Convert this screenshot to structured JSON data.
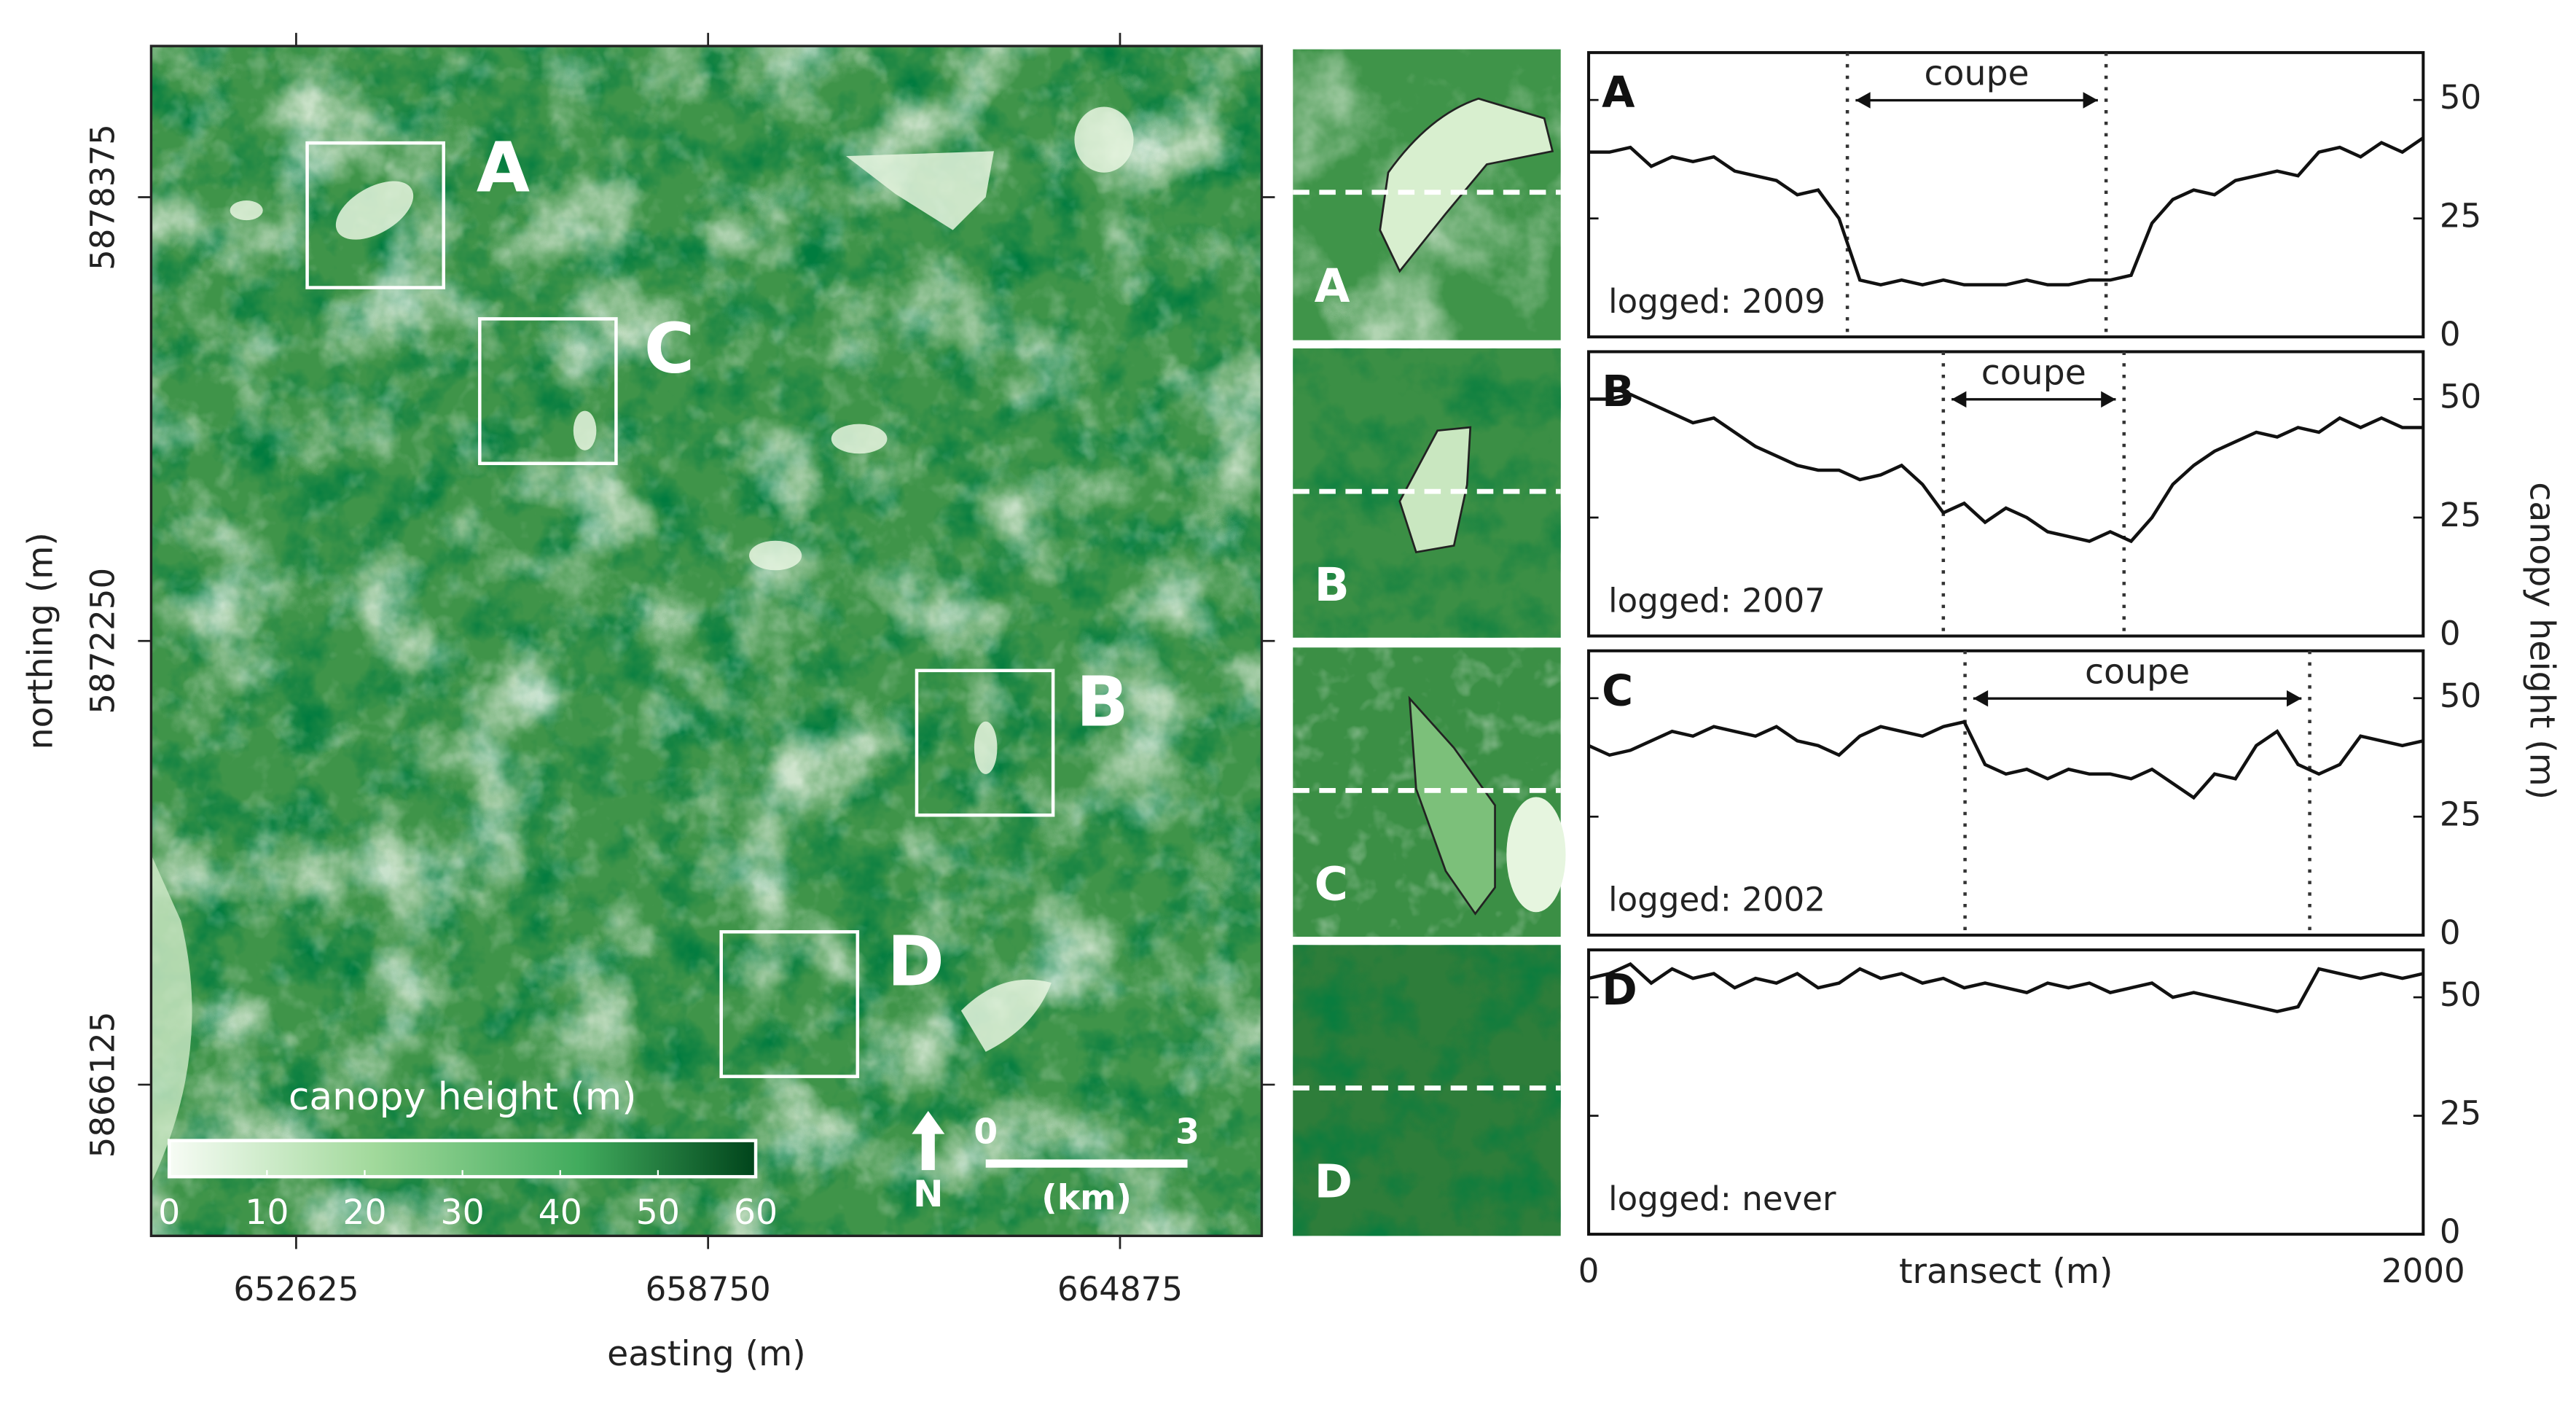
{
  "chart_data": [
    {
      "type": "map",
      "xlabel": "easting (m)",
      "ylabel": "northing (m)",
      "xlim": [
        650469,
        666982
      ],
      "ylim": [
        5864038,
        5880462
      ],
      "xticks": [
        652625,
        658750,
        664875
      ],
      "yticks": [
        5866125,
        5872250,
        5878375
      ],
      "boxes": [
        "A",
        "C",
        "B",
        "D"
      ],
      "insets": [
        "A",
        "B",
        "C",
        "D"
      ],
      "colorbar": {
        "label": "canopy height (m)",
        "lim": [
          0,
          60
        ],
        "ticks": [
          0,
          10,
          20,
          30,
          40,
          50,
          60
        ]
      },
      "scalebar": {
        "ticks": [
          0,
          3
        ],
        "label": "(km)"
      },
      "north": "N"
    },
    {
      "type": "line",
      "panel": "A",
      "note": "logged: 2009",
      "annotation": "coupe",
      "vlines": [
        620,
        1240
      ],
      "color": "#111111",
      "xlim": [
        0,
        2000
      ],
      "ylim": [
        0,
        60
      ],
      "yticks": [
        0,
        25,
        50
      ],
      "x": [
        0,
        50,
        100,
        150,
        200,
        250,
        300,
        350,
        400,
        450,
        500,
        550,
        600,
        650,
        700,
        750,
        800,
        850,
        900,
        950,
        1000,
        1050,
        1100,
        1150,
        1200,
        1250,
        1300,
        1350,
        1400,
        1450,
        1500,
        1550,
        1600,
        1650,
        1700,
        1750,
        1800,
        1850,
        1900,
        1950,
        2000
      ],
      "values": [
        39,
        39,
        40,
        36,
        38,
        37,
        38,
        35,
        34,
        33,
        30,
        31,
        25,
        12,
        11,
        12,
        11,
        12,
        11,
        11,
        11,
        12,
        11,
        11,
        12,
        12,
        13,
        24,
        29,
        31,
        30,
        33,
        34,
        35,
        34,
        39,
        40,
        38,
        41,
        39,
        42
      ]
    },
    {
      "type": "line",
      "panel": "B",
      "note": "logged: 2007",
      "annotation": "coupe",
      "vlines": [
        850,
        1283
      ],
      "color": "#111111",
      "xlim": [
        0,
        2000
      ],
      "ylim": [
        0,
        60
      ],
      "yticks": [
        0,
        25,
        50
      ],
      "x": [
        0,
        50,
        100,
        150,
        200,
        250,
        300,
        350,
        400,
        450,
        500,
        550,
        600,
        650,
        700,
        750,
        800,
        850,
        900,
        950,
        1000,
        1050,
        1100,
        1150,
        1200,
        1250,
        1300,
        1350,
        1400,
        1450,
        1500,
        1550,
        1600,
        1650,
        1700,
        1750,
        1800,
        1850,
        1900,
        1950,
        2000
      ],
      "values": [
        50,
        50,
        51,
        49,
        47,
        45,
        46,
        43,
        40,
        38,
        36,
        35,
        35,
        33,
        34,
        36,
        32,
        26,
        28,
        24,
        27,
        25,
        22,
        21,
        20,
        22,
        20,
        25,
        32,
        36,
        39,
        41,
        43,
        42,
        44,
        43,
        46,
        44,
        46,
        44,
        44
      ]
    },
    {
      "type": "line",
      "panel": "C",
      "note": "logged: 2002",
      "annotation": "coupe",
      "vlines": [
        902,
        1728
      ],
      "color": "#111111",
      "xlim": [
        0,
        2000
      ],
      "ylim": [
        0,
        60
      ],
      "yticks": [
        0,
        25,
        50
      ],
      "x": [
        0,
        50,
        100,
        150,
        200,
        250,
        300,
        350,
        400,
        450,
        500,
        550,
        600,
        650,
        700,
        750,
        800,
        850,
        900,
        950,
        1000,
        1050,
        1100,
        1150,
        1200,
        1250,
        1300,
        1350,
        1400,
        1450,
        1500,
        1550,
        1600,
        1650,
        1700,
        1750,
        1800,
        1850,
        1900,
        1950,
        2000
      ],
      "values": [
        40,
        38,
        39,
        41,
        43,
        42,
        44,
        43,
        42,
        44,
        41,
        40,
        38,
        42,
        44,
        43,
        42,
        44,
        45,
        36,
        34,
        35,
        33,
        35,
        34,
        34,
        33,
        35,
        32,
        29,
        34,
        33,
        40,
        43,
        36,
        34,
        36,
        42,
        41,
        40,
        41
      ]
    },
    {
      "type": "line",
      "panel": "D",
      "note": "logged: never",
      "color": "#111111",
      "xlim": [
        0,
        2000
      ],
      "ylim": [
        0,
        60
      ],
      "yticks": [
        0,
        25,
        50
      ],
      "xticks": [
        0,
        2000
      ],
      "xlabel": "transect (m)",
      "ylabel": "canopy height (m)",
      "x": [
        0,
        50,
        100,
        150,
        200,
        250,
        300,
        350,
        400,
        450,
        500,
        550,
        600,
        650,
        700,
        750,
        800,
        850,
        900,
        950,
        1000,
        1050,
        1100,
        1150,
        1200,
        1250,
        1300,
        1350,
        1400,
        1450,
        1500,
        1550,
        1600,
        1650,
        1700,
        1750,
        1800,
        1850,
        1900,
        1950,
        2000
      ],
      "values": [
        54,
        55,
        57,
        53,
        56,
        54,
        55,
        52,
        54,
        53,
        55,
        52,
        53,
        56,
        54,
        55,
        53,
        54,
        52,
        53,
        52,
        51,
        53,
        52,
        53,
        51,
        52,
        53,
        50,
        51,
        50,
        49,
        48,
        47,
        48,
        56,
        55,
        54,
        55,
        54,
        55
      ]
    }
  ]
}
